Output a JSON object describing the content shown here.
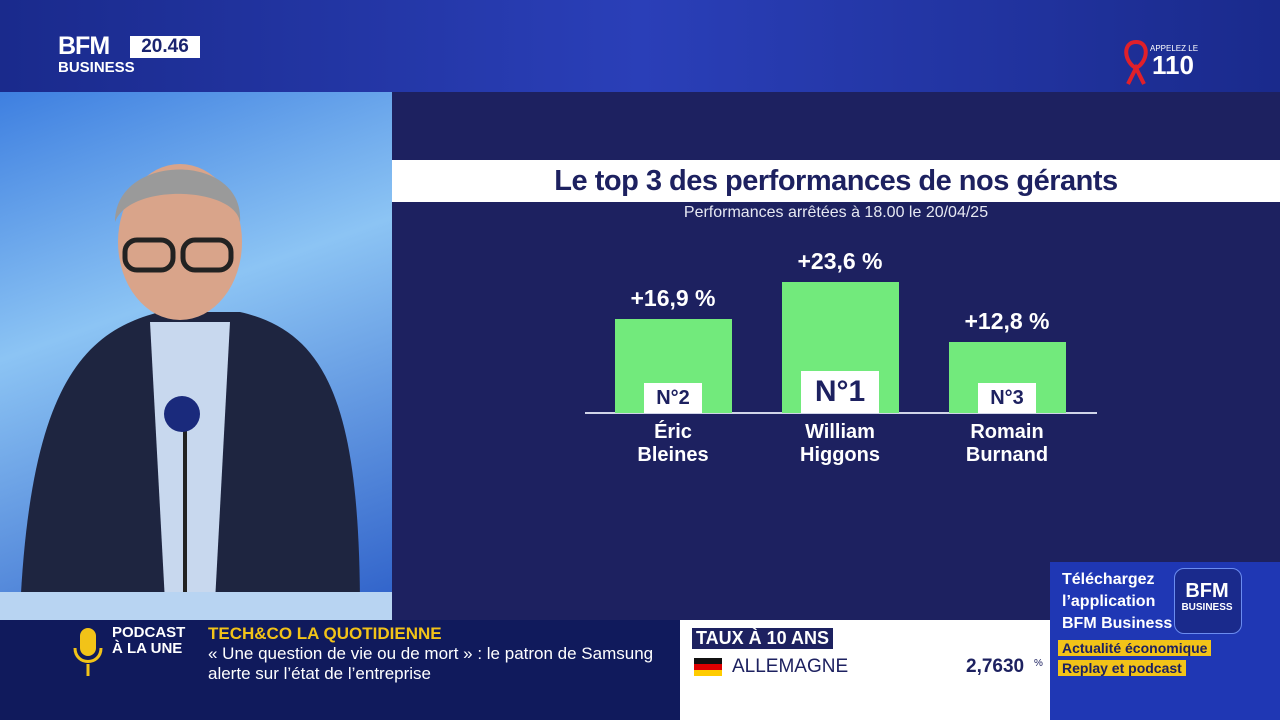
{
  "header": {
    "logo_top": "BFM",
    "logo_bottom": "BUSINESS",
    "time": "20.46",
    "hotline_label": "APPELEZ LE",
    "hotline_number": "110"
  },
  "chart_data": {
    "type": "bar",
    "title": "Le top 3 des performances de nos gérants",
    "subtitle": "Performances arrêtées à 18.00 le 20/04/25",
    "categories": [
      "Éric Bleines",
      "William Higgons",
      "Romain Burnand"
    ],
    "values": [
      16.9,
      23.6,
      12.8
    ],
    "value_labels": [
      "+16,9 %",
      "+23,6 %",
      "+12,8 %"
    ],
    "ranks": [
      "N°2",
      "N°1",
      "N°3"
    ],
    "color": "#72ea7c"
  },
  "ticker": {
    "podcast_line1": "PODCAST",
    "podcast_line2": "À LA UNE",
    "show": "TECH&CO LA QUOTIDIENNE",
    "headline_1": "« Une question de vie ou de mort » : le patron de Samsung",
    "headline_2": "alerte sur l’état de l’entreprise"
  },
  "market": {
    "title": "TAUX À 10 ANS",
    "country": "ALLEMAGNE",
    "value": "2,7630",
    "unit": "%"
  },
  "promo": {
    "line1": "Téléchargez",
    "line2": "l’application",
    "line3": "BFM Business",
    "tag1": "Actualité économique",
    "tag2": "Replay et podcast",
    "logo_top": "BFM",
    "logo_bottom": "BUSINESS"
  }
}
